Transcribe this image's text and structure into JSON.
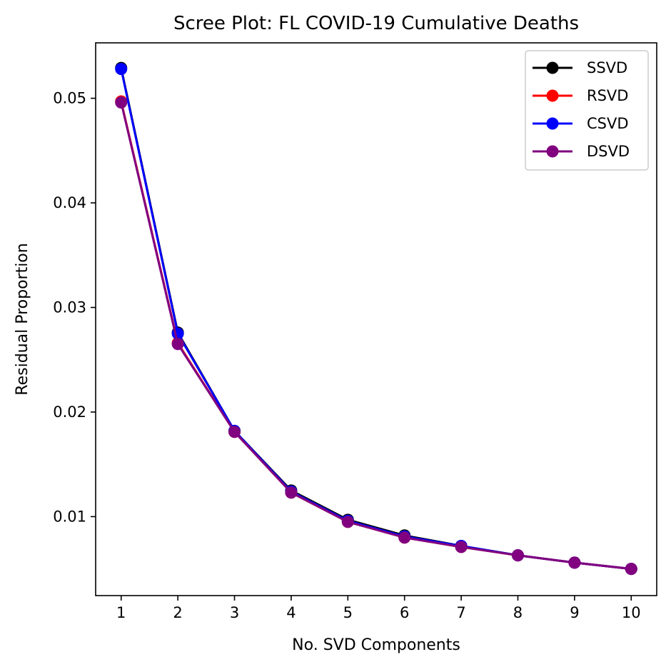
{
  "chart_data": {
    "type": "line",
    "title": "Scree Plot: FL COVID-19 Cumulative Deaths",
    "xlabel": "No. SVD Components",
    "ylabel": "Residual Proportion",
    "x": [
      1,
      2,
      3,
      4,
      5,
      6,
      7,
      8,
      9,
      10
    ],
    "x_ticks": [
      "1",
      "2",
      "3",
      "4",
      "5",
      "6",
      "7",
      "8",
      "9",
      "10"
    ],
    "y_ticks": [
      "0.01",
      "0.02",
      "0.03",
      "0.04",
      "0.05"
    ],
    "y_tick_values": [
      0.01,
      0.02,
      0.03,
      0.04,
      0.05
    ],
    "xlim": [
      0.55,
      10.45
    ],
    "ylim": [
      0.00245,
      0.0553
    ],
    "grid": false,
    "legend_position": "top-right",
    "series": [
      {
        "name": "SSVD",
        "color": "#000000",
        "values": [
          0.0529,
          0.0276,
          0.0182,
          0.0125,
          0.0097,
          0.0082,
          0.0072,
          0.0063,
          0.0056,
          0.005
        ]
      },
      {
        "name": "RSVD",
        "color": "#ff0000",
        "values": [
          0.0497,
          0.0266,
          0.0181,
          0.0123,
          0.0095,
          0.008,
          0.0071,
          0.0063,
          0.0056,
          0.005
        ]
      },
      {
        "name": "CSVD",
        "color": "#0000ff",
        "values": [
          0.0528,
          0.0275,
          0.0182,
          0.0124,
          0.0096,
          0.0081,
          0.0072,
          0.0063,
          0.0056,
          0.005
        ]
      },
      {
        "name": "DSVD",
        "color": "#800080",
        "values": [
          0.0496,
          0.0265,
          0.0181,
          0.0123,
          0.0095,
          0.008,
          0.0071,
          0.0063,
          0.0056,
          0.005
        ]
      }
    ]
  }
}
